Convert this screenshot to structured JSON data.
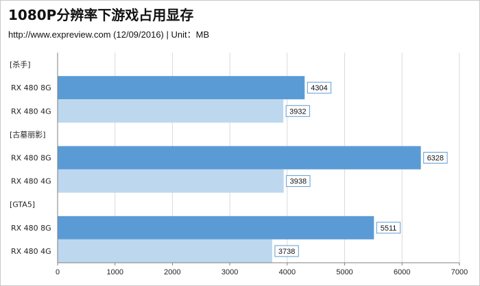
{
  "title": "1080P分辨率下游戏占用显存",
  "subtitle": "http://www.expreview.com (12/09/2016) | Unit：MB",
  "colors": {
    "dark": "#5b9bd5",
    "light": "#bdd7ee",
    "grid": "#d9d9d9",
    "axis": "#7f7f7f",
    "label_border": "#5b9bd5"
  },
  "chart_data": {
    "type": "bar",
    "orientation": "horizontal",
    "title": "1080P分辨率下游戏占用显存",
    "subtitle": "http://www.expreview.com (12/09/2016) | Unit：MB",
    "rows": [
      {
        "label": "[杀手]",
        "value": null,
        "tone": "none"
      },
      {
        "label": "RX 480 8G",
        "value": 4304,
        "tone": "dark"
      },
      {
        "label": "RX 480 4G",
        "value": 3932,
        "tone": "light"
      },
      {
        "label": "[古墓丽影]",
        "value": null,
        "tone": "none"
      },
      {
        "label": "RX 480 8G",
        "value": 6328,
        "tone": "dark"
      },
      {
        "label": "RX 480 4G",
        "value": 3938,
        "tone": "light"
      },
      {
        "label": "[GTA5]",
        "value": null,
        "tone": "none"
      },
      {
        "label": "RX 480 8G",
        "value": 5511,
        "tone": "dark"
      },
      {
        "label": "RX 480 4G",
        "value": 3738,
        "tone": "light"
      }
    ],
    "xlim": [
      0,
      7000
    ],
    "xticks": [
      0,
      1000,
      2000,
      3000,
      4000,
      5000,
      6000,
      7000
    ],
    "grid": true,
    "data_labels": true
  }
}
